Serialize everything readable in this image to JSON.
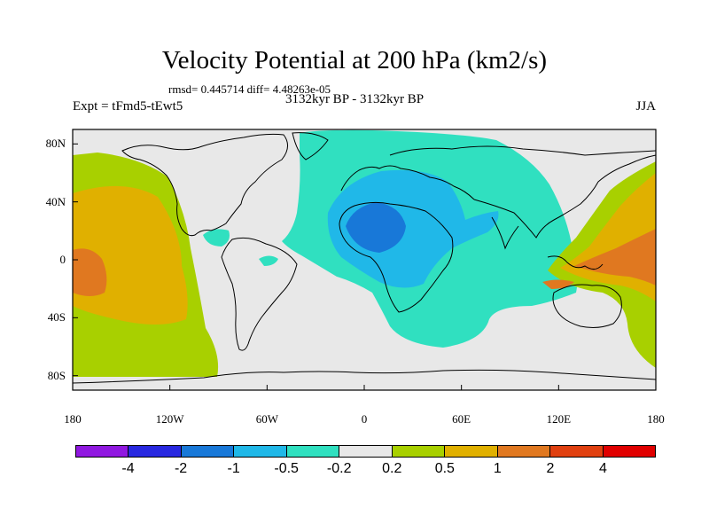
{
  "title": "Velocity Potential at 200 hPa (km2/s)",
  "stats": "rmsd= 0.445714 diff= 4.48263e-05",
  "experiment": "Expt = tFmd5-tEwt5",
  "period": "3132kyr BP - 3132kyr BP",
  "season": "JJA",
  "map": {
    "projection": "cylindrical equidistant",
    "background_color": "#e8e8e8",
    "lon_labels": [
      "180",
      "120W",
      "60W",
      "0",
      "60E",
      "120E",
      "180"
    ],
    "lat_labels": [
      "80N",
      "40N",
      "0",
      "40S",
      "80S"
    ],
    "regions": [
      {
        "name": "eastern pacific positive",
        "level": "0.2 to 0.5",
        "color": "#a8d000"
      },
      {
        "name": "eastern pacific core",
        "level": "0.5 to 1",
        "color": "#e0b000"
      },
      {
        "name": "eastern pacific max",
        "level": "1 to 2",
        "color": "#e07820"
      },
      {
        "name": "africa eurasia negative",
        "level": "-0.5 to -0.2",
        "color": "#30e0c0"
      },
      {
        "name": "africa inner",
        "level": "-1 to -0.5",
        "color": "#20b8e8"
      },
      {
        "name": "sahara min",
        "level": "-2 to -1",
        "color": "#1878d8"
      },
      {
        "name": "western pacific positive",
        "level": "0.5 to 2",
        "color": "#e07820"
      }
    ]
  },
  "colorbar": {
    "colors": [
      "#9018e0",
      "#2828e0",
      "#1878d8",
      "#20b8e8",
      "#30e0c0",
      "#e8e8e8",
      "#a8d000",
      "#e0b000",
      "#e07820",
      "#e04010",
      "#e00000"
    ],
    "labels": [
      "-4",
      "-2",
      "-1",
      "-0.5",
      "-0.2",
      "0.2",
      "0.5",
      "1",
      "2",
      "4"
    ]
  }
}
